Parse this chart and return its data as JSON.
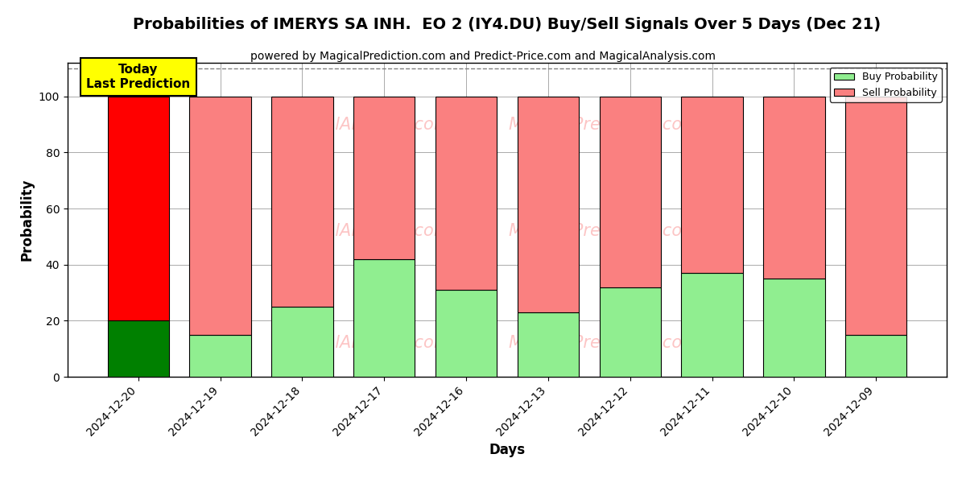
{
  "title": "Probabilities of IMERYS SA INH.  EO 2 (IY4.DU) Buy/Sell Signals Over 5 Days (Dec 21)",
  "subtitle": "powered by MagicalPrediction.com and Predict-Price.com and MagicalAnalysis.com",
  "xlabel": "Days",
  "ylabel": "Probability",
  "categories": [
    "2024-12-20",
    "2024-12-19",
    "2024-12-18",
    "2024-12-17",
    "2024-12-16",
    "2024-12-13",
    "2024-12-12",
    "2024-12-11",
    "2024-12-10",
    "2024-12-09"
  ],
  "buy_values": [
    20,
    15,
    25,
    42,
    31,
    23,
    32,
    37,
    35,
    15
  ],
  "sell_values": [
    80,
    85,
    75,
    58,
    69,
    77,
    68,
    63,
    65,
    85
  ],
  "buy_colors": [
    "#008000",
    "#90EE90",
    "#90EE90",
    "#90EE90",
    "#90EE90",
    "#90EE90",
    "#90EE90",
    "#90EE90",
    "#90EE90",
    "#90EE90"
  ],
  "sell_colors": [
    "#FF0000",
    "#FA8080",
    "#FA8080",
    "#FA8080",
    "#FA8080",
    "#FA8080",
    "#FA8080",
    "#FA8080",
    "#FA8080",
    "#FA8080"
  ],
  "today_label": "Today\nLast Prediction",
  "legend_buy": "Buy Probability",
  "legend_sell": "Sell Probability",
  "ylim": [
    0,
    112
  ],
  "yticks": [
    0,
    20,
    40,
    60,
    80,
    100
  ],
  "dashed_line_y": 110,
  "background_color": "#ffffff",
  "grid_color": "#aaaaaa",
  "watermark_row1": "  calAnalysis.com      MagicalPrediction.com  ",
  "watermark_row2": "  calAnalysis.com      MagicalPrediction.com  "
}
